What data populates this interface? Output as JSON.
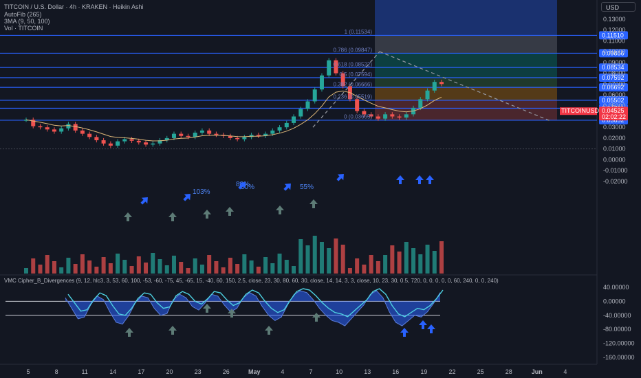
{
  "header": {
    "symbol_line": "TITCOIN / U.S. Dollar · 4h · KRAKEN · Heikin Ashi",
    "indicators": [
      "AutoFib (265)",
      "3MA (9, 50, 100)",
      "Vol · TITCOIN"
    ]
  },
  "currency_button": "USD",
  "indicator_title": "VMC Cipher_B_Divergences (9, 12, hlc3, 3, 53, 60, 100, -53, -60, -75, 45, -65, 15, -40, 60, 150, 2.5, close, 23, 30, 80, 60, 30, close, 14, 14, 3, 3, close, 10, 23, 30, 0.5, 720, 0, 0, 0, 0, 0, 60, 240, 0, 0, 240)",
  "symbol_badge": {
    "name": "TITCOINUSD",
    "price": "0.04525",
    "countdown": "02:02:22"
  },
  "colors": {
    "background": "#131722",
    "up": "#26a69a",
    "down": "#ef5350",
    "hline": "#2962ff",
    "arrow": "#2962ff",
    "grey_arrow": "#5d7b76"
  },
  "chart_data": [
    {
      "type": "line",
      "title": "TITCOIN / U.S. Dollar · 4h · KRAKEN · Heikin Ashi",
      "price_axis_ticks": [
        "0.13000",
        "0.12000",
        "0.11000",
        "0.10000",
        "0.09000",
        "0.08000",
        "0.07000",
        "0.06000",
        "0.05000",
        "0.04000",
        "0.03000",
        "0.02000",
        "0.01000",
        "0.00000",
        "-0.01000",
        "-0.02000"
      ],
      "price_levels": [
        {
          "label": "0.11510",
          "value": 0.1151
        },
        {
          "label": "0.09856",
          "value": 0.09856
        },
        {
          "label": "0.08534",
          "value": 0.08534
        },
        {
          "label": "0.07592",
          "value": 0.07592
        },
        {
          "label": "0.06692",
          "value": 0.06692
        },
        {
          "label": "0.05502",
          "value": 0.05502
        },
        {
          "label": "0.04761",
          "value": 0.04761
        },
        {
          "label": "0.03652",
          "value": 0.03652
        }
      ],
      "fib_levels": [
        {
          "label": "1 (0.11534)",
          "value": 0.11534
        },
        {
          "label": "0.786 (0.09847)",
          "value": 0.09847
        },
        {
          "label": "0.618 (0.08522)",
          "value": 0.08522
        },
        {
          "label": "0.5 (0.07594)",
          "value": 0.07594
        },
        {
          "label": "0.382 (0.06666)",
          "value": 0.06666
        },
        {
          "label": "0.236 (0.05519)",
          "value": 0.05519
        },
        {
          "label": "0 (0.03665)",
          "value": 0.03665
        }
      ],
      "x_ticks": [
        "5",
        "8",
        "11",
        "14",
        "17",
        "20",
        "23",
        "26",
        "May",
        "4",
        "7",
        "10",
        "13",
        "16",
        "19",
        "22",
        "25",
        "28",
        "Jun",
        "4"
      ],
      "close_series": [
        0.037,
        0.031,
        0.03,
        0.028,
        0.026,
        0.029,
        0.033,
        0.027,
        0.024,
        0.021,
        0.018,
        0.015,
        0.013,
        0.017,
        0.019,
        0.0175,
        0.016,
        0.014,
        0.015,
        0.018,
        0.02,
        0.024,
        0.022,
        0.021,
        0.025,
        0.027,
        0.024,
        0.023,
        0.022,
        0.02,
        0.019,
        0.021,
        0.023,
        0.022,
        0.024,
        0.027,
        0.03,
        0.034,
        0.04,
        0.047,
        0.054,
        0.065,
        0.078,
        0.092,
        0.08,
        0.068,
        0.056,
        0.045,
        0.042,
        0.04,
        0.038,
        0.042,
        0.04,
        0.039,
        0.042,
        0.048,
        0.056,
        0.064,
        0.072,
        0.07
      ],
      "percent_annotations": [
        "103%",
        "88%",
        "50%",
        "55%"
      ]
    },
    {
      "type": "area",
      "title": "VMC Cipher_B_Divergences",
      "osc_axis_ticks": [
        "40.00000",
        "0.00000",
        "-40.00000",
        "-80.00000",
        "-120.00000",
        "-160.00000"
      ],
      "wave_series": [
        10,
        -20,
        -50,
        -45,
        -10,
        15,
        5,
        -30,
        -60,
        -65,
        -40,
        -5,
        15,
        10,
        -20,
        -40,
        -35,
        5,
        20,
        10,
        -15,
        -25,
        -5,
        20,
        15,
        -10,
        -30,
        -20,
        10,
        25,
        15,
        -15,
        -40,
        -55,
        -45,
        -10,
        20,
        30,
        25,
        5,
        -20,
        -40,
        -55,
        -60,
        -70,
        -50,
        -30,
        -10,
        20,
        30,
        10,
        -30,
        -60,
        -70,
        -55,
        -40,
        -45,
        -30,
        -5,
        25
      ]
    }
  ]
}
